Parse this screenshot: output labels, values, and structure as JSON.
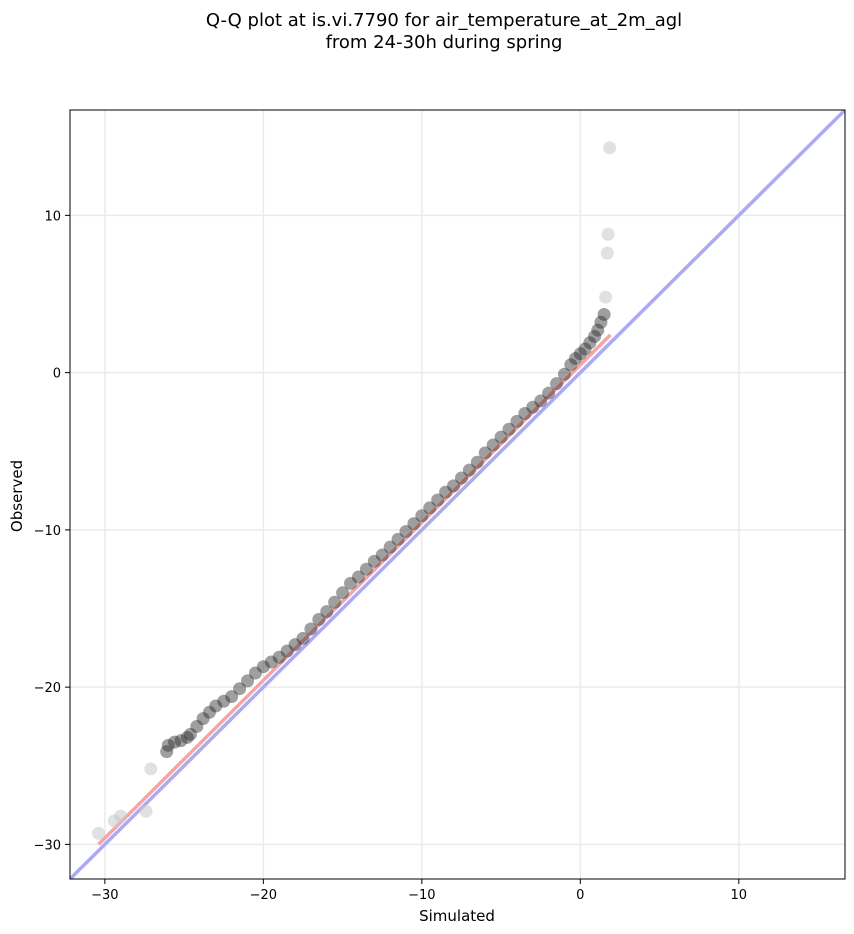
{
  "chart_data": {
    "type": "scatter",
    "title": [
      "Q-Q plot at is.vi.7790 for air_temperature_at_2m_agl",
      "from 24-30h during spring"
    ],
    "xlabel": "Simulated",
    "ylabel": "Observed",
    "xlim": [
      -32.2,
      16.7
    ],
    "ylim": [
      -32.2,
      16.7
    ],
    "xticks": [
      -30,
      -20,
      -10,
      0,
      10
    ],
    "yticks": [
      -30,
      -20,
      -10,
      0,
      10
    ],
    "xtick_labels": [
      "−30",
      "−20",
      "−10",
      "0",
      "10"
    ],
    "ytick_labels": [
      "−30",
      "−20",
      "−10",
      "0",
      "10"
    ],
    "grid": true,
    "reference_line": {
      "name": "1:1",
      "x": [
        -32.2,
        16.7
      ],
      "y": [
        -32.2,
        16.7
      ],
      "color": "#aaaaf5"
    },
    "fit_line": {
      "x": [
        -30.4,
        1.9
      ],
      "y": [
        -30.0,
        2.4
      ],
      "color": "#f4a6a6"
    },
    "points": {
      "x": [
        -30.4,
        -29.4,
        -29.0,
        -27.4,
        -27.1,
        -26.1,
        -26.0,
        -25.6,
        -25.2,
        -24.8,
        -24.6,
        -24.2,
        -23.8,
        -23.4,
        -23.0,
        -22.5,
        -22.0,
        -21.5,
        -21.0,
        -20.5,
        -20.0,
        -19.5,
        -19.0,
        -18.5,
        -18.0,
        -17.5,
        -17.0,
        -16.5,
        -16.0,
        -15.5,
        -15.0,
        -14.5,
        -14.0,
        -13.5,
        -13.0,
        -12.5,
        -12.0,
        -11.5,
        -11.0,
        -10.5,
        -10.0,
        -9.5,
        -9.0,
        -8.5,
        -8.0,
        -7.5,
        -7.0,
        -6.5,
        -6.0,
        -5.5,
        -5.0,
        -4.5,
        -4.0,
        -3.5,
        -3.0,
        -2.5,
        -2.0,
        -1.5,
        -1.0,
        -0.6,
        -0.3,
        0.0,
        0.3,
        0.6,
        0.9,
        1.1,
        1.3,
        1.5,
        1.6,
        1.7,
        1.75,
        1.85
      ],
      "y": [
        -29.3,
        -28.5,
        -28.2,
        -27.9,
        -25.2,
        -24.1,
        -23.7,
        -23.5,
        -23.4,
        -23.2,
        -23.0,
        -22.5,
        -22.0,
        -21.6,
        -21.2,
        -20.9,
        -20.6,
        -20.1,
        -19.6,
        -19.1,
        -18.7,
        -18.4,
        -18.1,
        -17.7,
        -17.3,
        -16.9,
        -16.3,
        -15.7,
        -15.2,
        -14.6,
        -14.0,
        -13.4,
        -13.0,
        -12.5,
        -12.0,
        -11.6,
        -11.1,
        -10.6,
        -10.1,
        -9.6,
        -9.1,
        -8.6,
        -8.1,
        -7.6,
        -7.2,
        -6.7,
        -6.2,
        -5.7,
        -5.1,
        -4.6,
        -4.1,
        -3.6,
        -3.1,
        -2.6,
        -2.2,
        -1.8,
        -1.3,
        -0.7,
        -0.1,
        0.5,
        0.9,
        1.2,
        1.5,
        1.9,
        2.3,
        2.7,
        3.2,
        3.7,
        4.8,
        7.6,
        8.8,
        14.3
      ]
    }
  }
}
